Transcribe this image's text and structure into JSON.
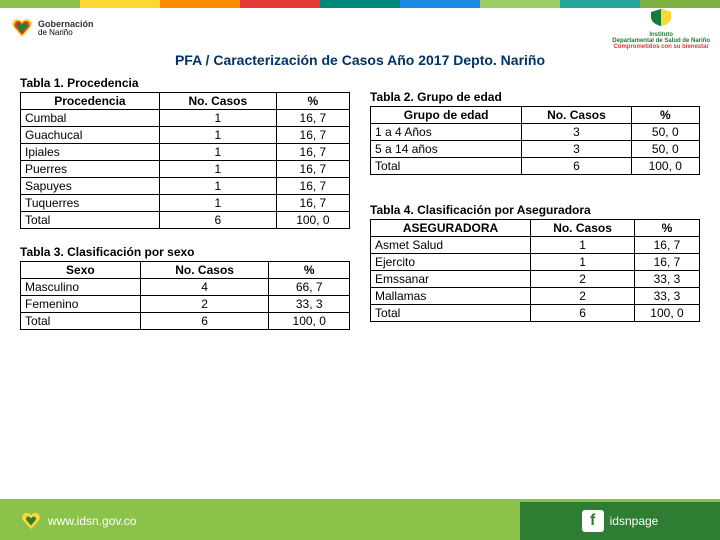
{
  "topbar_colors": [
    "#8bc34a",
    "#fdd835",
    "#fb8c00",
    "#e53935",
    "#00897b",
    "#1e88e5",
    "#9ccc65",
    "#26a69a",
    "#7cb342"
  ],
  "header": {
    "left_line1": "Gobernación",
    "left_line2": "de Nariño",
    "right_line1": "Instituto",
    "right_line2": "Departamental de Salud de Nariño",
    "right_tagline": "Comprometidos con su bienestar"
  },
  "title": "PFA  /  Caracterización de Casos Año  2017  Depto. Nariño",
  "table1": {
    "title": "Tabla  1. Procedencia",
    "columns": [
      "Procedencia",
      "No. Casos",
      "%"
    ],
    "rows": [
      [
        "Cumbal",
        "1",
        "16, 7"
      ],
      [
        "Guachucal",
        "1",
        "16, 7"
      ],
      [
        "Ipiales",
        "1",
        "16, 7"
      ],
      [
        "Puerres",
        "1",
        "16, 7"
      ],
      [
        "Sapuyes",
        "1",
        "16, 7"
      ],
      [
        "Tuquerres",
        "1",
        "16, 7"
      ],
      [
        "Total",
        "6",
        "100, 0"
      ]
    ]
  },
  "table2": {
    "title": "Tabla  2. Grupo de edad",
    "columns": [
      "Grupo de edad",
      "No. Casos",
      "%"
    ],
    "rows": [
      [
        "1 a 4 Años",
        "3",
        "50, 0"
      ],
      [
        "5 a 14 años",
        "3",
        "50, 0"
      ],
      [
        "Total",
        "6",
        "100, 0"
      ]
    ]
  },
  "table3": {
    "title": "Tabla  3. Clasificación por sexo",
    "columns": [
      "Sexo",
      "No. Casos",
      "%"
    ],
    "rows": [
      [
        "Masculino",
        "4",
        "66, 7"
      ],
      [
        "Femenino",
        "2",
        "33, 3"
      ],
      [
        "Total",
        "6",
        "100, 0"
      ]
    ]
  },
  "table4": {
    "title": "Tabla  4. Clasificación por Aseguradora",
    "columns": [
      "ASEGURADORA",
      "No. Casos",
      "%"
    ],
    "rows": [
      [
        "Asmet Salud",
        "1",
        "16, 7"
      ],
      [
        "Ejercito",
        "1",
        "16, 7"
      ],
      [
        "Emssanar",
        "2",
        "33, 3"
      ],
      [
        "Mallamas",
        "2",
        "33, 3"
      ],
      [
        "Total",
        "6",
        "100, 0"
      ]
    ]
  },
  "footer": {
    "url": "www.idsn.gov.co",
    "social": "idsnpage"
  }
}
